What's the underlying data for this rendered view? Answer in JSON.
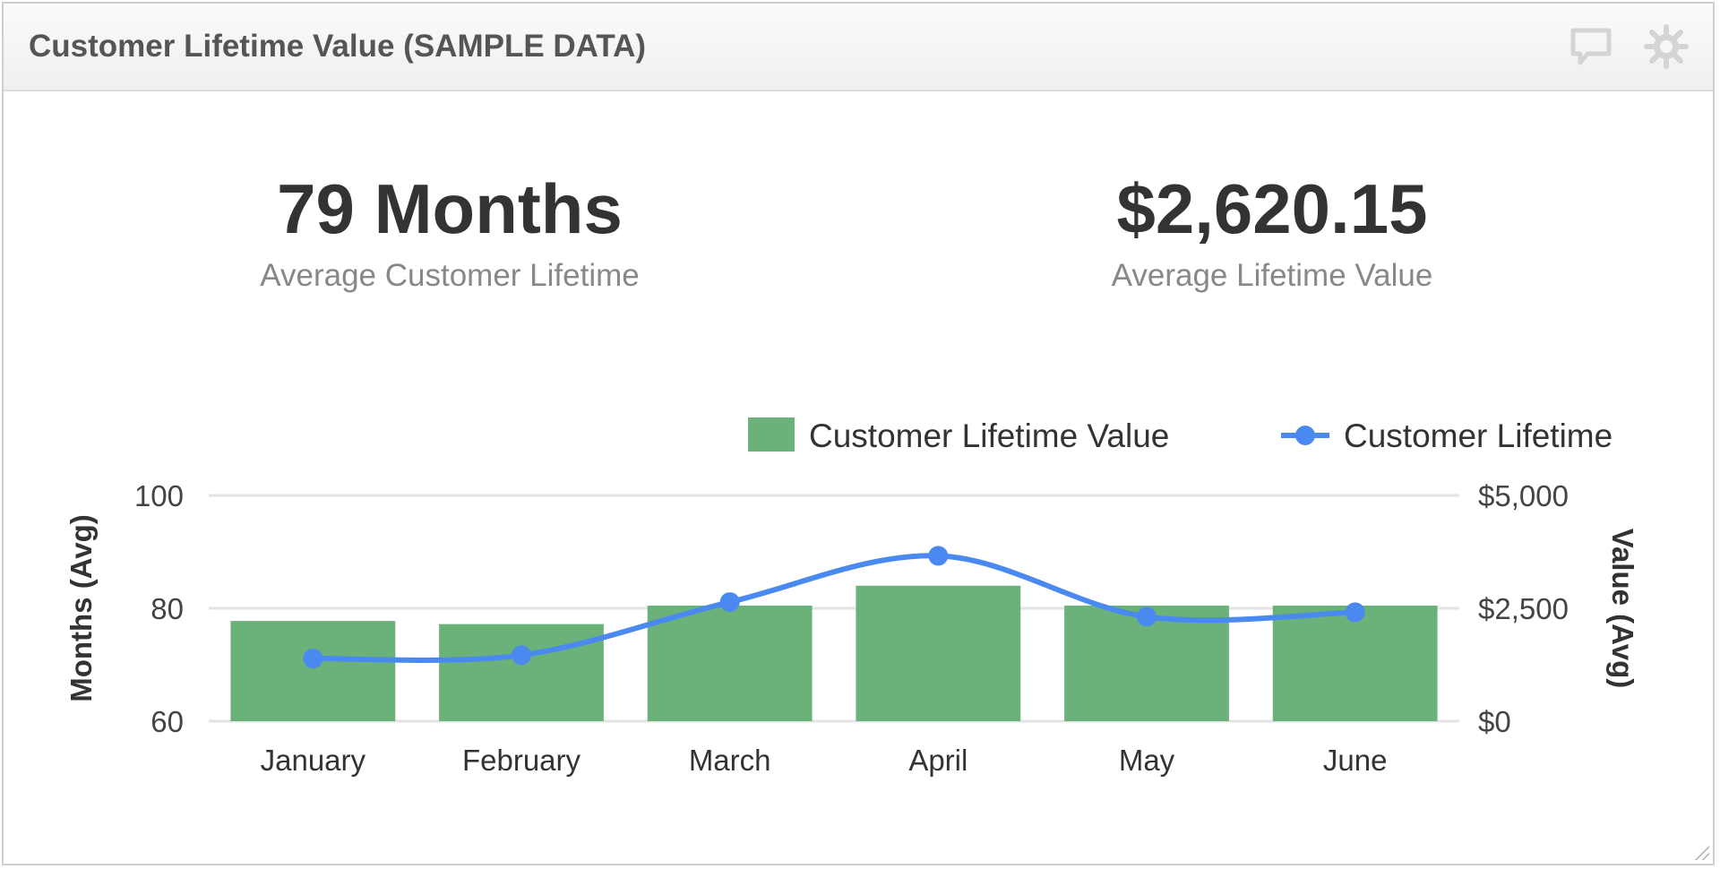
{
  "header": {
    "title": "Customer Lifetime Value (SAMPLE DATA)",
    "icons": [
      "comment-icon",
      "gear-icon"
    ]
  },
  "kpis": [
    {
      "value": "79 Months",
      "label": "Average Customer Lifetime"
    },
    {
      "value": "$2,620.15",
      "label": "Average Lifetime Value"
    }
  ],
  "chart_data": {
    "type": "bar+line",
    "categories": [
      "January",
      "February",
      "March",
      "April",
      "May",
      "June"
    ],
    "series": [
      {
        "name": "Customer Lifetime Value",
        "type": "bar",
        "axis": "right",
        "color": "#6bb27a",
        "values": [
          2220,
          2150,
          2560,
          3000,
          2560,
          2560
        ]
      },
      {
        "name": "Customer Lifetime",
        "type": "line",
        "axis": "left",
        "color": "#4a8af0",
        "values": [
          71.1,
          71.7,
          81.1,
          89.3,
          78.5,
          79.3
        ]
      }
    ],
    "left_axis": {
      "label": "Months (Avg)",
      "range": [
        60,
        100
      ],
      "ticks": [
        "60",
        "80",
        "100"
      ]
    },
    "right_axis": {
      "label": "Value (Avg)",
      "range": [
        0,
        5000
      ],
      "ticks": [
        "$0",
        "$2,500",
        "$5,000"
      ]
    },
    "legend": "top-right",
    "grid": true
  }
}
